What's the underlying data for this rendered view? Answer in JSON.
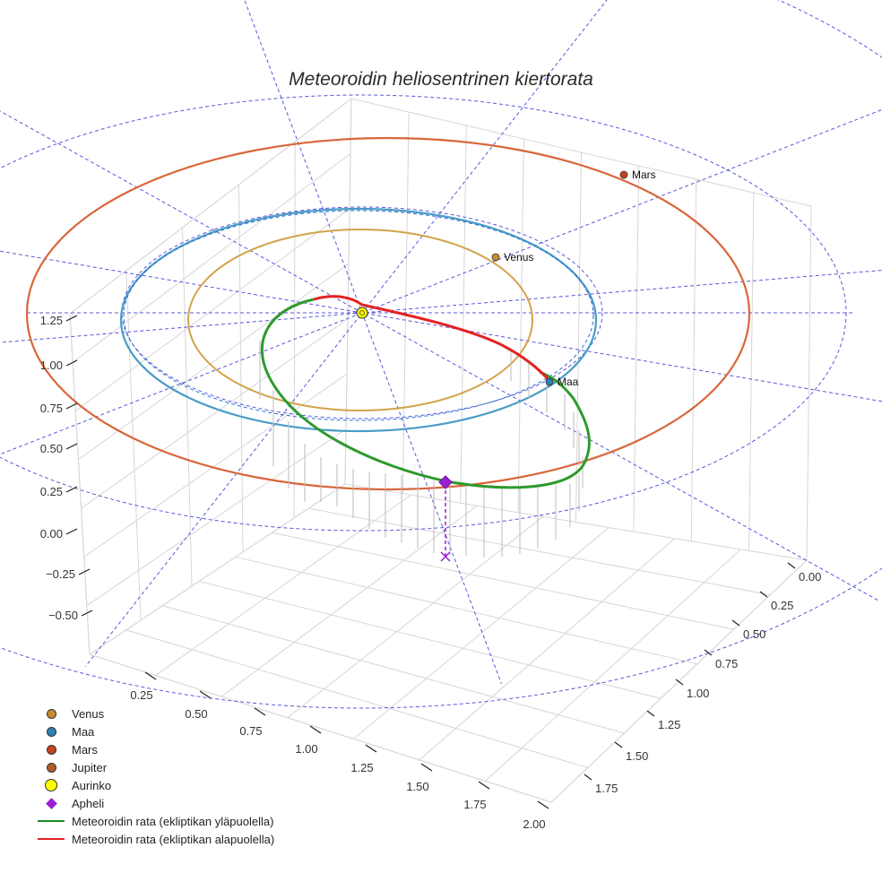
{
  "chart_data": {
    "type": "line",
    "title": "Meteoroidin heliosentrinen kiertorata",
    "axes": {
      "z": {
        "ticks": [
          "1.25",
          "1.00",
          "0.75",
          "0.50",
          "0.25",
          "0.00",
          "−0.25",
          "−0.50"
        ]
      },
      "x": {
        "ticks": [
          "0.25",
          "0.50",
          "0.75",
          "1.00",
          "1.25",
          "1.50",
          "1.75",
          "2.00"
        ]
      },
      "y": {
        "ticks": [
          "0.00",
          "0.25",
          "0.50",
          "0.75",
          "1.00",
          "1.25",
          "1.50",
          "1.75"
        ]
      }
    },
    "planets": [
      {
        "name": "Venus",
        "label": "Venus",
        "semi_major_axis_au": 0.72,
        "color": "#c98b2e"
      },
      {
        "name": "Maa",
        "label": "Maa",
        "semi_major_axis_au": 1.0,
        "color": "#2e7fb8"
      },
      {
        "name": "Mars",
        "label": "Mars",
        "semi_major_axis_au": 1.52,
        "color": "#c4441c"
      }
    ],
    "orbit_colors": {
      "venus": "#d4a24a",
      "earth": "#4a9cc7",
      "mars": "#d9663b",
      "ecliptic_grid": "#3b3bd6"
    },
    "meteoroid_orbit": {
      "perihelion_au": 0.03,
      "aphelion_au": 1.2,
      "above_ecliptic_color": "#2e9a2e",
      "below_ecliptic_color": "#e42222"
    },
    "aphelion": {
      "label": "Apheli",
      "color": "#9a1fd4"
    },
    "sun": {
      "label": "Aurinko",
      "color": "#ffff00"
    },
    "legend": [
      {
        "label": "Venus",
        "kind": "dot",
        "color": "#c98b2e"
      },
      {
        "label": "Maa",
        "kind": "dot",
        "color": "#2e7fb8"
      },
      {
        "label": "Mars",
        "kind": "dot",
        "color": "#c4441c"
      },
      {
        "label": "Jupiter",
        "kind": "dot",
        "color": "#b05f2a"
      },
      {
        "label": "Aurinko",
        "kind": "sun",
        "color": "#ffff00"
      },
      {
        "label": "Apheli",
        "kind": "diamond",
        "color": "#9a1fd4"
      },
      {
        "label": "Meteoroidin rata (ekliptikan yläpuolella)",
        "kind": "line",
        "color": "#1f8a1f"
      },
      {
        "label": "Meteoroidin rata (ekliptikan alapuolella)",
        "kind": "line",
        "color": "#e42222"
      }
    ]
  }
}
